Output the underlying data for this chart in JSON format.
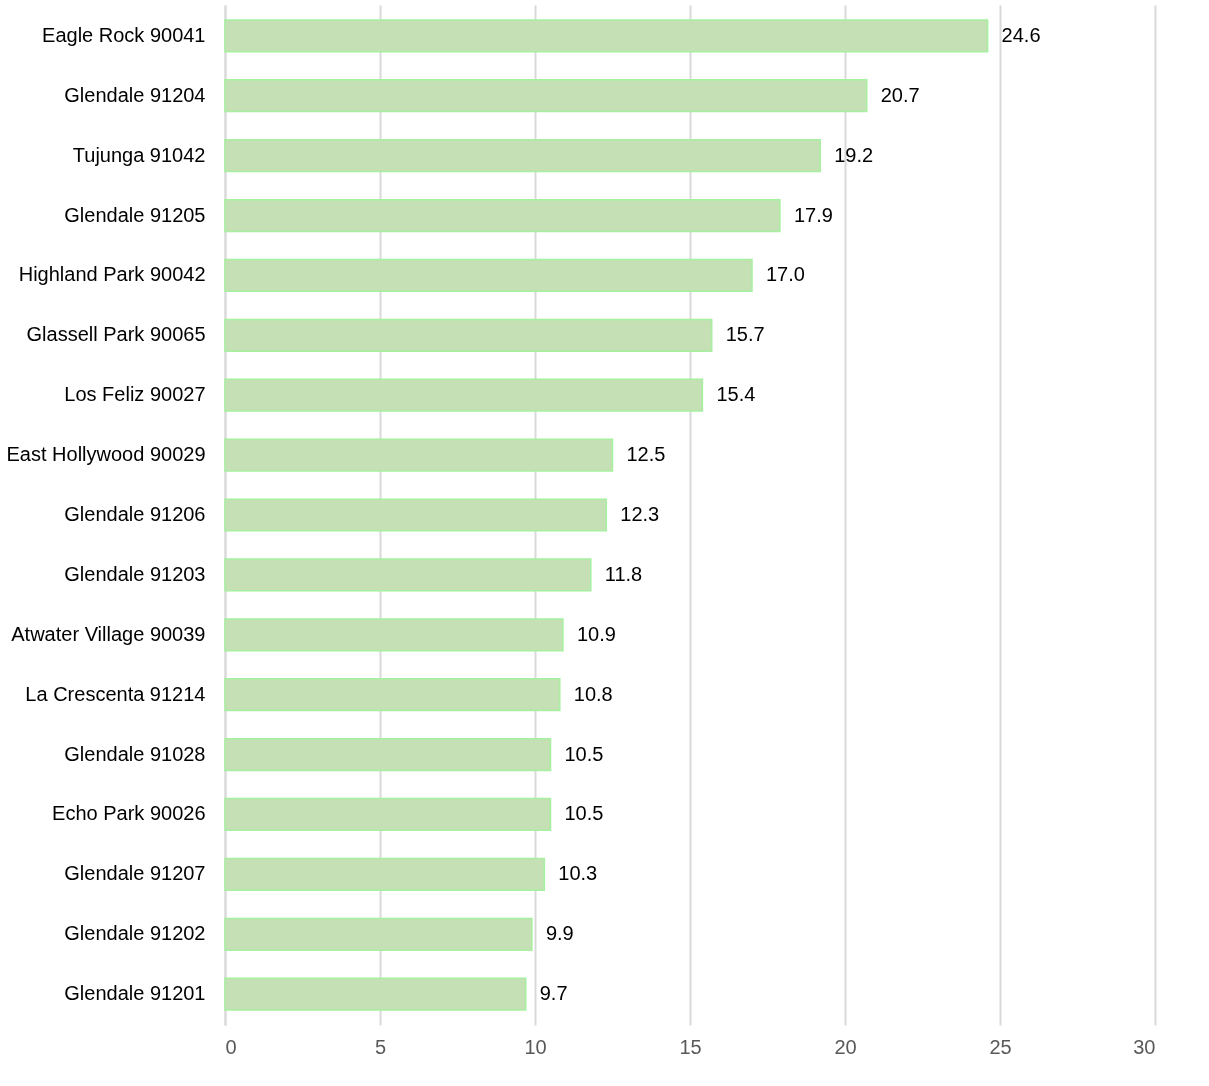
{
  "chart_data": {
    "type": "bar",
    "orientation": "horizontal",
    "categories": [
      "Eagle Rock 90041",
      "Glendale 91204",
      "Tujunga 91042",
      "Glendale 91205",
      "Highland Park 90042",
      "Glassell Park 90065",
      "Los Feliz 90027",
      "East Hollywood 90029",
      "Glendale 91206",
      "Glendale 91203",
      "Atwater Village 90039",
      "La Crescenta 91214",
      "Glendale 91028",
      "Echo Park 90026",
      "Glendale 91207",
      "Glendale 91202",
      "Glendale 91201"
    ],
    "values": [
      24.6,
      20.7,
      19.2,
      17.9,
      17.0,
      15.7,
      15.4,
      12.5,
      12.3,
      11.8,
      10.9,
      10.8,
      10.5,
      10.5,
      10.3,
      9.9,
      9.7
    ],
    "value_labels": [
      "24.6",
      "20.7",
      "19.2",
      "17.9",
      "17.0",
      "15.7",
      "15.4",
      "12.5",
      "12.3",
      "11.8",
      "10.9",
      "10.8",
      "10.5",
      "10.5",
      "10.3",
      "9.9",
      "9.7"
    ],
    "color": "#c5e0b4",
    "xlim": [
      0,
      30
    ],
    "xticks": [
      0,
      5,
      10,
      15,
      20,
      25,
      30
    ],
    "grid": "x"
  }
}
